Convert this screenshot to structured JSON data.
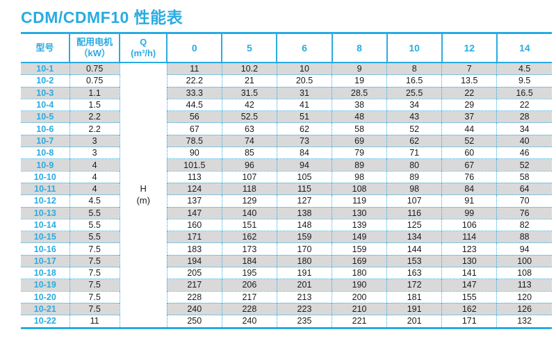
{
  "title": "CDM/CDMF10 性能表",
  "colors": {
    "accent_cyan": "#29abe2",
    "stripe_gray": "#d9d9d9",
    "text_dark": "#1a1a1a"
  },
  "table": {
    "headers": {
      "model": "型号",
      "motor_line1": "配用电机",
      "motor_line2": "（kW）",
      "q_line1": "Q",
      "q_line2": "(m³/h)",
      "flow_columns": [
        "0",
        "5",
        "6",
        "8",
        "10",
        "12",
        "14"
      ]
    },
    "h_label": {
      "line1": "H",
      "line2": "(m)"
    },
    "rows": [
      {
        "model": "10-1",
        "kw": "0.75",
        "values": [
          "11",
          "10.2",
          "10",
          "9",
          "8",
          "7",
          "4.5"
        ]
      },
      {
        "model": "10-2",
        "kw": "0.75",
        "values": [
          "22.2",
          "21",
          "20.5",
          "19",
          "16.5",
          "13.5",
          "9.5"
        ]
      },
      {
        "model": "10-3",
        "kw": "1.1",
        "values": [
          "33.3",
          "31.5",
          "31",
          "28.5",
          "25.5",
          "22",
          "16.5"
        ]
      },
      {
        "model": "10-4",
        "kw": "1.5",
        "values": [
          "44.5",
          "42",
          "41",
          "38",
          "34",
          "29",
          "22"
        ]
      },
      {
        "model": "10-5",
        "kw": "2.2",
        "values": [
          "56",
          "52.5",
          "51",
          "48",
          "43",
          "37",
          "28"
        ]
      },
      {
        "model": "10-6",
        "kw": "2.2",
        "values": [
          "67",
          "63",
          "62",
          "58",
          "52",
          "44",
          "34"
        ]
      },
      {
        "model": "10-7",
        "kw": "3",
        "values": [
          "78.5",
          "74",
          "73",
          "69",
          "62",
          "52",
          "40"
        ]
      },
      {
        "model": "10-8",
        "kw": "3",
        "values": [
          "90",
          "85",
          "84",
          "79",
          "71",
          "60",
          "46"
        ]
      },
      {
        "model": "10-9",
        "kw": "4",
        "values": [
          "101.5",
          "96",
          "94",
          "89",
          "80",
          "67",
          "52"
        ]
      },
      {
        "model": "10-10",
        "kw": "4",
        "values": [
          "113",
          "107",
          "105",
          "98",
          "89",
          "76",
          "58"
        ]
      },
      {
        "model": "10-11",
        "kw": "4",
        "values": [
          "124",
          "118",
          "115",
          "108",
          "98",
          "84",
          "64"
        ]
      },
      {
        "model": "10-12",
        "kw": "4.5",
        "values": [
          "137",
          "129",
          "127",
          "119",
          "107",
          "91",
          "70"
        ]
      },
      {
        "model": "10-13",
        "kw": "5.5",
        "values": [
          "147",
          "140",
          "138",
          "130",
          "116",
          "99",
          "76"
        ]
      },
      {
        "model": "10-14",
        "kw": "5.5",
        "values": [
          "160",
          "151",
          "148",
          "139",
          "125",
          "106",
          "82"
        ]
      },
      {
        "model": "10-15",
        "kw": "5.5",
        "values": [
          "171",
          "162",
          "159",
          "149",
          "134",
          "114",
          "88"
        ]
      },
      {
        "model": "10-16",
        "kw": "7.5",
        "values": [
          "183",
          "173",
          "170",
          "159",
          "144",
          "123",
          "94"
        ]
      },
      {
        "model": "10-17",
        "kw": "7.5",
        "values": [
          "194",
          "184",
          "180",
          "169",
          "153",
          "130",
          "100"
        ]
      },
      {
        "model": "10-18",
        "kw": "7.5",
        "values": [
          "205",
          "195",
          "191",
          "180",
          "163",
          "141",
          "108"
        ]
      },
      {
        "model": "10-19",
        "kw": "7.5",
        "values": [
          "217",
          "206",
          "201",
          "190",
          "172",
          "147",
          "113"
        ]
      },
      {
        "model": "10-20",
        "kw": "7.5",
        "values": [
          "228",
          "217",
          "213",
          "200",
          "181",
          "155",
          "120"
        ]
      },
      {
        "model": "10-21",
        "kw": "7.5",
        "values": [
          "240",
          "228",
          "223",
          "210",
          "191",
          "162",
          "126"
        ]
      },
      {
        "model": "10-22",
        "kw": "11",
        "values": [
          "250",
          "240",
          "235",
          "221",
          "201",
          "171",
          "132"
        ]
      }
    ]
  }
}
